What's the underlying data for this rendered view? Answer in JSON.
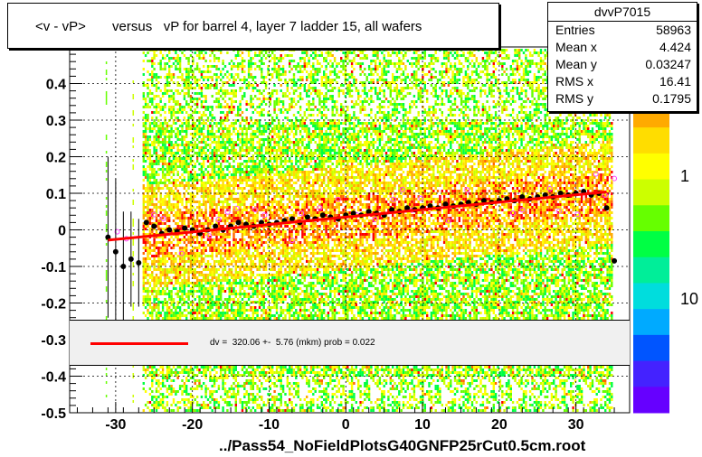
{
  "title": "<v - vP>       versus   vP for barrel 4, layer 7 ladder 15, all wafers",
  "x_title": "../Pass54_NoFieldPlotsG40GNFP25rCut0.5cm.root",
  "stats": {
    "name": "dvvP7015",
    "rows": [
      {
        "key": "Entries",
        "value": "58963"
      },
      {
        "key": "Mean x",
        "value": "4.424"
      },
      {
        "key": "Mean y",
        "value": "0.03247"
      },
      {
        "key": "RMS x",
        "value": "16.41"
      },
      {
        "key": "RMS y",
        "value": "0.1795"
      }
    ]
  },
  "fit_text": "dv =  320.06 +-  5.76 (mkm) prob = 0.022",
  "colors": {
    "fit_line": "#ff0000",
    "profile_points": "#000000",
    "open_markers": "#ff44ff",
    "palette": [
      "#6600ff",
      "#4422ff",
      "#0055ff",
      "#00aaff",
      "#00dddd",
      "#00ee99",
      "#00ff44",
      "#66ff00",
      "#ccff00",
      "#ffff00",
      "#ffdd00",
      "#ffaa00",
      "#ff6600",
      "#ff0000"
    ]
  },
  "chart_data": {
    "type": "scatter",
    "xlim": [
      -36,
      37
    ],
    "ylim": [
      -0.5,
      0.5
    ],
    "x_ticks": [
      -30,
      -20,
      -10,
      0,
      10,
      20,
      30
    ],
    "x_tick_labels": [
      "-30",
      "-20",
      "-10",
      "0",
      "10",
      "20",
      "30"
    ],
    "y_ticks": [
      -0.5,
      -0.4,
      -0.3,
      -0.2,
      -0.1,
      0,
      0.1,
      0.2,
      0.3,
      0.4
    ],
    "y_tick_labels": [
      "-0.5",
      "-0.4",
      "-0.3",
      "-0.2",
      "-0.1",
      "0",
      "0.1",
      "0.2",
      "0.3",
      "0.4"
    ],
    "color_scale_labels": [
      "1",
      "10"
    ],
    "grid": true,
    "fit_line": {
      "x": [
        -31,
        34
      ],
      "y": [
        -0.028,
        0.104
      ]
    },
    "profile": {
      "x": [
        -31,
        -30,
        -29,
        -28,
        -27,
        -26,
        -25,
        -24,
        -23,
        -22,
        -21,
        -20,
        -19,
        -18,
        -17,
        -16,
        -15,
        -14,
        -13,
        -12,
        -11,
        -10,
        -9,
        -8,
        -7,
        -6,
        -5,
        -4,
        -3,
        -2,
        -1,
        0,
        1,
        2,
        3,
        4,
        5,
        6,
        7,
        8,
        9,
        10,
        11,
        12,
        13,
        14,
        15,
        16,
        17,
        18,
        19,
        20,
        21,
        22,
        23,
        24,
        25,
        26,
        27,
        28,
        29,
        30,
        31,
        32,
        33,
        34,
        35
      ],
      "y": [
        -0.02,
        -0.06,
        -0.1,
        -0.08,
        -0.09,
        0.02,
        0.01,
        -0.01,
        0,
        -0.005,
        0.005,
        0,
        -0.01,
        0,
        0.01,
        0,
        0.01,
        0.02,
        0.015,
        0.01,
        0.02,
        0.015,
        0.02,
        0.025,
        0.03,
        0.02,
        0.035,
        0.03,
        0.04,
        0.035,
        0.03,
        0.04,
        0.045,
        0.04,
        0.05,
        0.045,
        0.04,
        0.055,
        0.05,
        0.06,
        0.055,
        0.06,
        0.065,
        0.06,
        0.07,
        0.065,
        0.07,
        0.075,
        0.07,
        0.08,
        0.075,
        0.08,
        0.085,
        0.08,
        0.09,
        0.085,
        0.09,
        0.095,
        0.09,
        0.1,
        0.095,
        0.1,
        0.105,
        0.095,
        0.1,
        0.06,
        -0.085
      ],
      "yerr": [
        0.22,
        0.2,
        0.15,
        0.13,
        0.12,
        0,
        0,
        0,
        0,
        0,
        0,
        0,
        0,
        0,
        0,
        0,
        0,
        0,
        0,
        0,
        0,
        0,
        0,
        0,
        0,
        0,
        0,
        0,
        0,
        0,
        0,
        0,
        0,
        0,
        0,
        0,
        0,
        0,
        0,
        0,
        0,
        0,
        0,
        0,
        0,
        0,
        0,
        0,
        0,
        0,
        0,
        0,
        0,
        0,
        0,
        0,
        0,
        0,
        0,
        0,
        0,
        0,
        0,
        0,
        0,
        0,
        0
      ]
    }
  }
}
